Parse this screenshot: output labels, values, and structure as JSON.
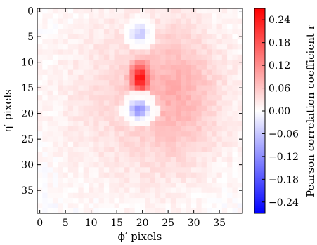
{
  "chart_data": {
    "type": "heatmap",
    "title": "",
    "xlabel": "ϕ′ pixels",
    "ylabel": "η′ pixels",
    "colorbar_label": "Pearson correlation coefficient r",
    "colormap": "bwr",
    "value_range": [
      -0.27,
      0.27
    ],
    "grid_size": [
      40,
      40
    ],
    "xlim": [
      -0.5,
      39.5
    ],
    "ylim": [
      39.5,
      -0.5
    ],
    "x_ticks": [
      0,
      5,
      10,
      15,
      20,
      25,
      30,
      35
    ],
    "y_ticks": [
      0,
      5,
      10,
      15,
      20,
      25,
      30,
      35
    ],
    "colorbar_ticks": [
      0.24,
      0.18,
      0.12,
      0.06,
      0.0,
      -0.06,
      -0.12,
      -0.18,
      -0.24
    ],
    "colorbar_tick_labels": [
      "0.24",
      "0.18",
      "0.12",
      "0.06",
      "0.00",
      "−0.06",
      "−0.12",
      "−0.18",
      "−0.24"
    ],
    "features": [
      {
        "kind": "halo",
        "cx": 21,
        "cy": 17,
        "rx": 13,
        "ry": 14,
        "peak": 0.05
      },
      {
        "kind": "shoulder",
        "cx": 27,
        "cy": 16,
        "rx": 5,
        "ry": 8,
        "peak": 0.045
      },
      {
        "kind": "core",
        "cx": 19.5,
        "cy": 13,
        "rx": 1.2,
        "ry": 2.0,
        "peak": 0.2
      },
      {
        "kind": "negative-blob",
        "cx": 19.5,
        "cy": 19.2,
        "rx": 1.6,
        "ry": 1.5,
        "peak": -0.17
      },
      {
        "kind": "negative-blob",
        "cx": 19.5,
        "cy": 4.5,
        "rx": 1.5,
        "ry": 1.6,
        "peak": -0.09
      },
      {
        "kind": "white-ring",
        "cx": 19.5,
        "cy": 4.5,
        "r": 2.7
      },
      {
        "kind": "white-ring",
        "cx": 19.5,
        "cy": 19.2,
        "r": 2.9
      },
      {
        "kind": "background",
        "mean": -0.005,
        "noise": 0.012
      }
    ]
  }
}
